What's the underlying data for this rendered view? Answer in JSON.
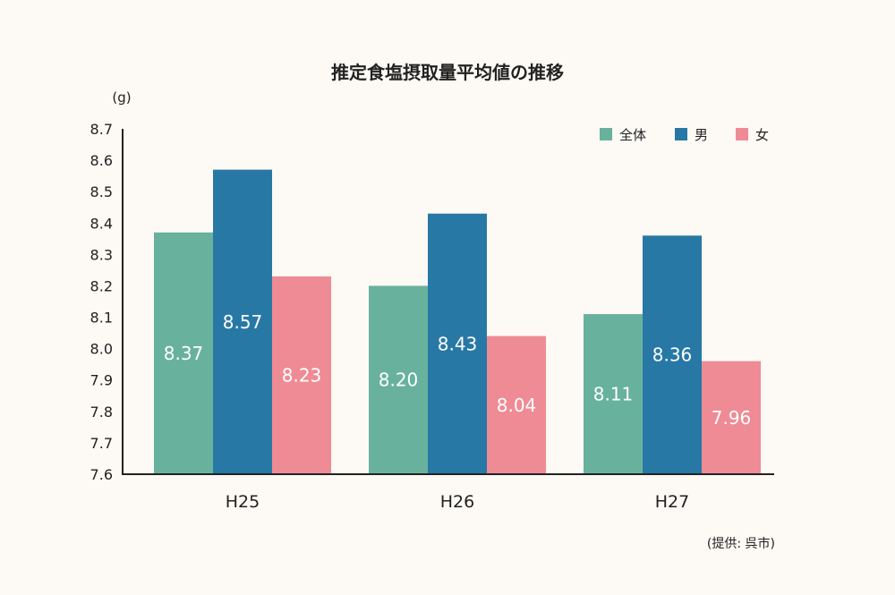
{
  "chart_data": {
    "type": "bar",
    "title": "推定食塩摂取量平均値の推移",
    "unit_label": "(g)",
    "categories": [
      "H25",
      "H26",
      "H27"
    ],
    "series": [
      {
        "name": "全体",
        "color": "#68b29d",
        "values": [
          8.37,
          8.2,
          8.11
        ],
        "labels": [
          "8.37",
          "8.20",
          "8.11"
        ]
      },
      {
        "name": "男",
        "color": "#2878a6",
        "values": [
          8.57,
          8.43,
          8.36
        ],
        "labels": [
          "8.57",
          "8.43",
          "8.36"
        ]
      },
      {
        "name": "女",
        "color": "#ef8b95",
        "values": [
          8.23,
          8.04,
          7.96
        ],
        "labels": [
          "8.23",
          "8.04",
          "7.96"
        ]
      }
    ],
    "ylim": [
      7.6,
      8.7
    ],
    "yticks": [
      "7.6",
      "7.7",
      "7.8",
      "7.9",
      "8.0",
      "8.1",
      "8.2",
      "8.3",
      "8.4",
      "8.5",
      "8.6",
      "8.7"
    ],
    "legend_position": "top-right",
    "grid": false
  },
  "source_note": "(提供: 呉市)"
}
